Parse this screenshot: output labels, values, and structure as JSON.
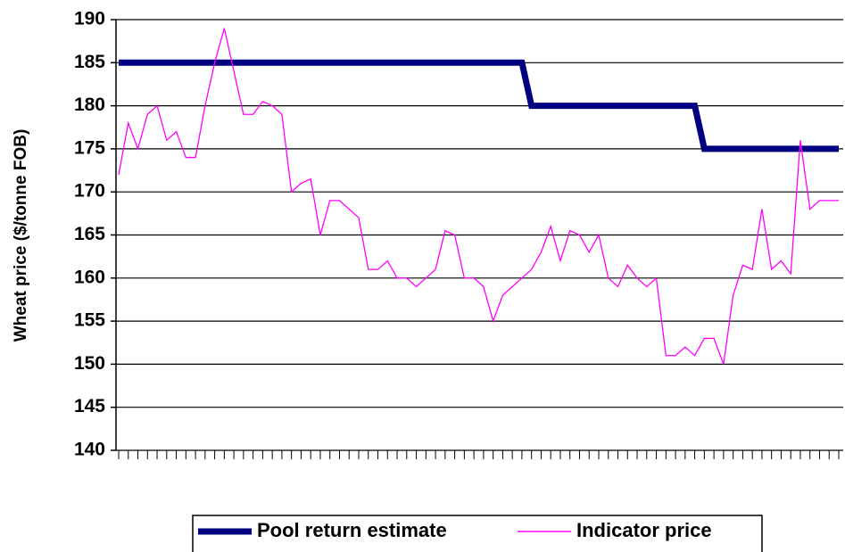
{
  "chart_data": {
    "type": "line",
    "y_label": "Wheat price ($/tonne FOB)",
    "categories": [
      null,
      null,
      null,
      null,
      null,
      null,
      null,
      null,
      null,
      null,
      null,
      null,
      null,
      null,
      null,
      null,
      null,
      null,
      null,
      null,
      null,
      null,
      null,
      null,
      null,
      null,
      null,
      null,
      null,
      null,
      null,
      null,
      null,
      null,
      null,
      null,
      null,
      null,
      null,
      null,
      null,
      null,
      null,
      null,
      null,
      null,
      null,
      null,
      null,
      null,
      null,
      null,
      null,
      null,
      null,
      null,
      null,
      null,
      null,
      null,
      null,
      null,
      null,
      null,
      null,
      null,
      null,
      null,
      null,
      null,
      null,
      null,
      null,
      null,
      null,
      null
    ],
    "series": [
      {
        "name": "Pool return estimate",
        "color": "#000080",
        "values": [
          185,
          185,
          185,
          185,
          185,
          185,
          185,
          185,
          185,
          185,
          185,
          185,
          185,
          185,
          185,
          185,
          185,
          185,
          185,
          185,
          185,
          185,
          185,
          185,
          185,
          185,
          185,
          185,
          185,
          185,
          185,
          185,
          185,
          185,
          185,
          185,
          185,
          185,
          185,
          185,
          185,
          185,
          185,
          180,
          180,
          180,
          180,
          180,
          180,
          180,
          180,
          180,
          180,
          180,
          180,
          180,
          180,
          180,
          180,
          180,
          180,
          175,
          175,
          175,
          175,
          175,
          175,
          175,
          175,
          175,
          175,
          175,
          175,
          175,
          175,
          175
        ]
      },
      {
        "name": "Indicator price",
        "color": "#ff00ff",
        "values": [
          172,
          178,
          175,
          179,
          180,
          176,
          177,
          174,
          174,
          180,
          185,
          189,
          184,
          179,
          179,
          180.5,
          180,
          179,
          170,
          171,
          171.5,
          165,
          169,
          169,
          168,
          167,
          161,
          161,
          162,
          160,
          160,
          159,
          160,
          161,
          165.5,
          165,
          160,
          160,
          159,
          155,
          158,
          159,
          160,
          161,
          163,
          166,
          162,
          165.5,
          165,
          163,
          165,
          160,
          159,
          161.5,
          160,
          159,
          160,
          151,
          151,
          152,
          151,
          153,
          153,
          150,
          158,
          161.5,
          161,
          168,
          161,
          162,
          160.5,
          176,
          168,
          169,
          169,
          169
        ]
      }
    ],
    "ylim": [
      140,
      190
    ],
    "yticks": [
      140,
      145,
      150,
      155,
      160,
      165,
      170,
      175,
      180,
      185,
      190
    ],
    "grid": true,
    "legend": "bottom"
  }
}
